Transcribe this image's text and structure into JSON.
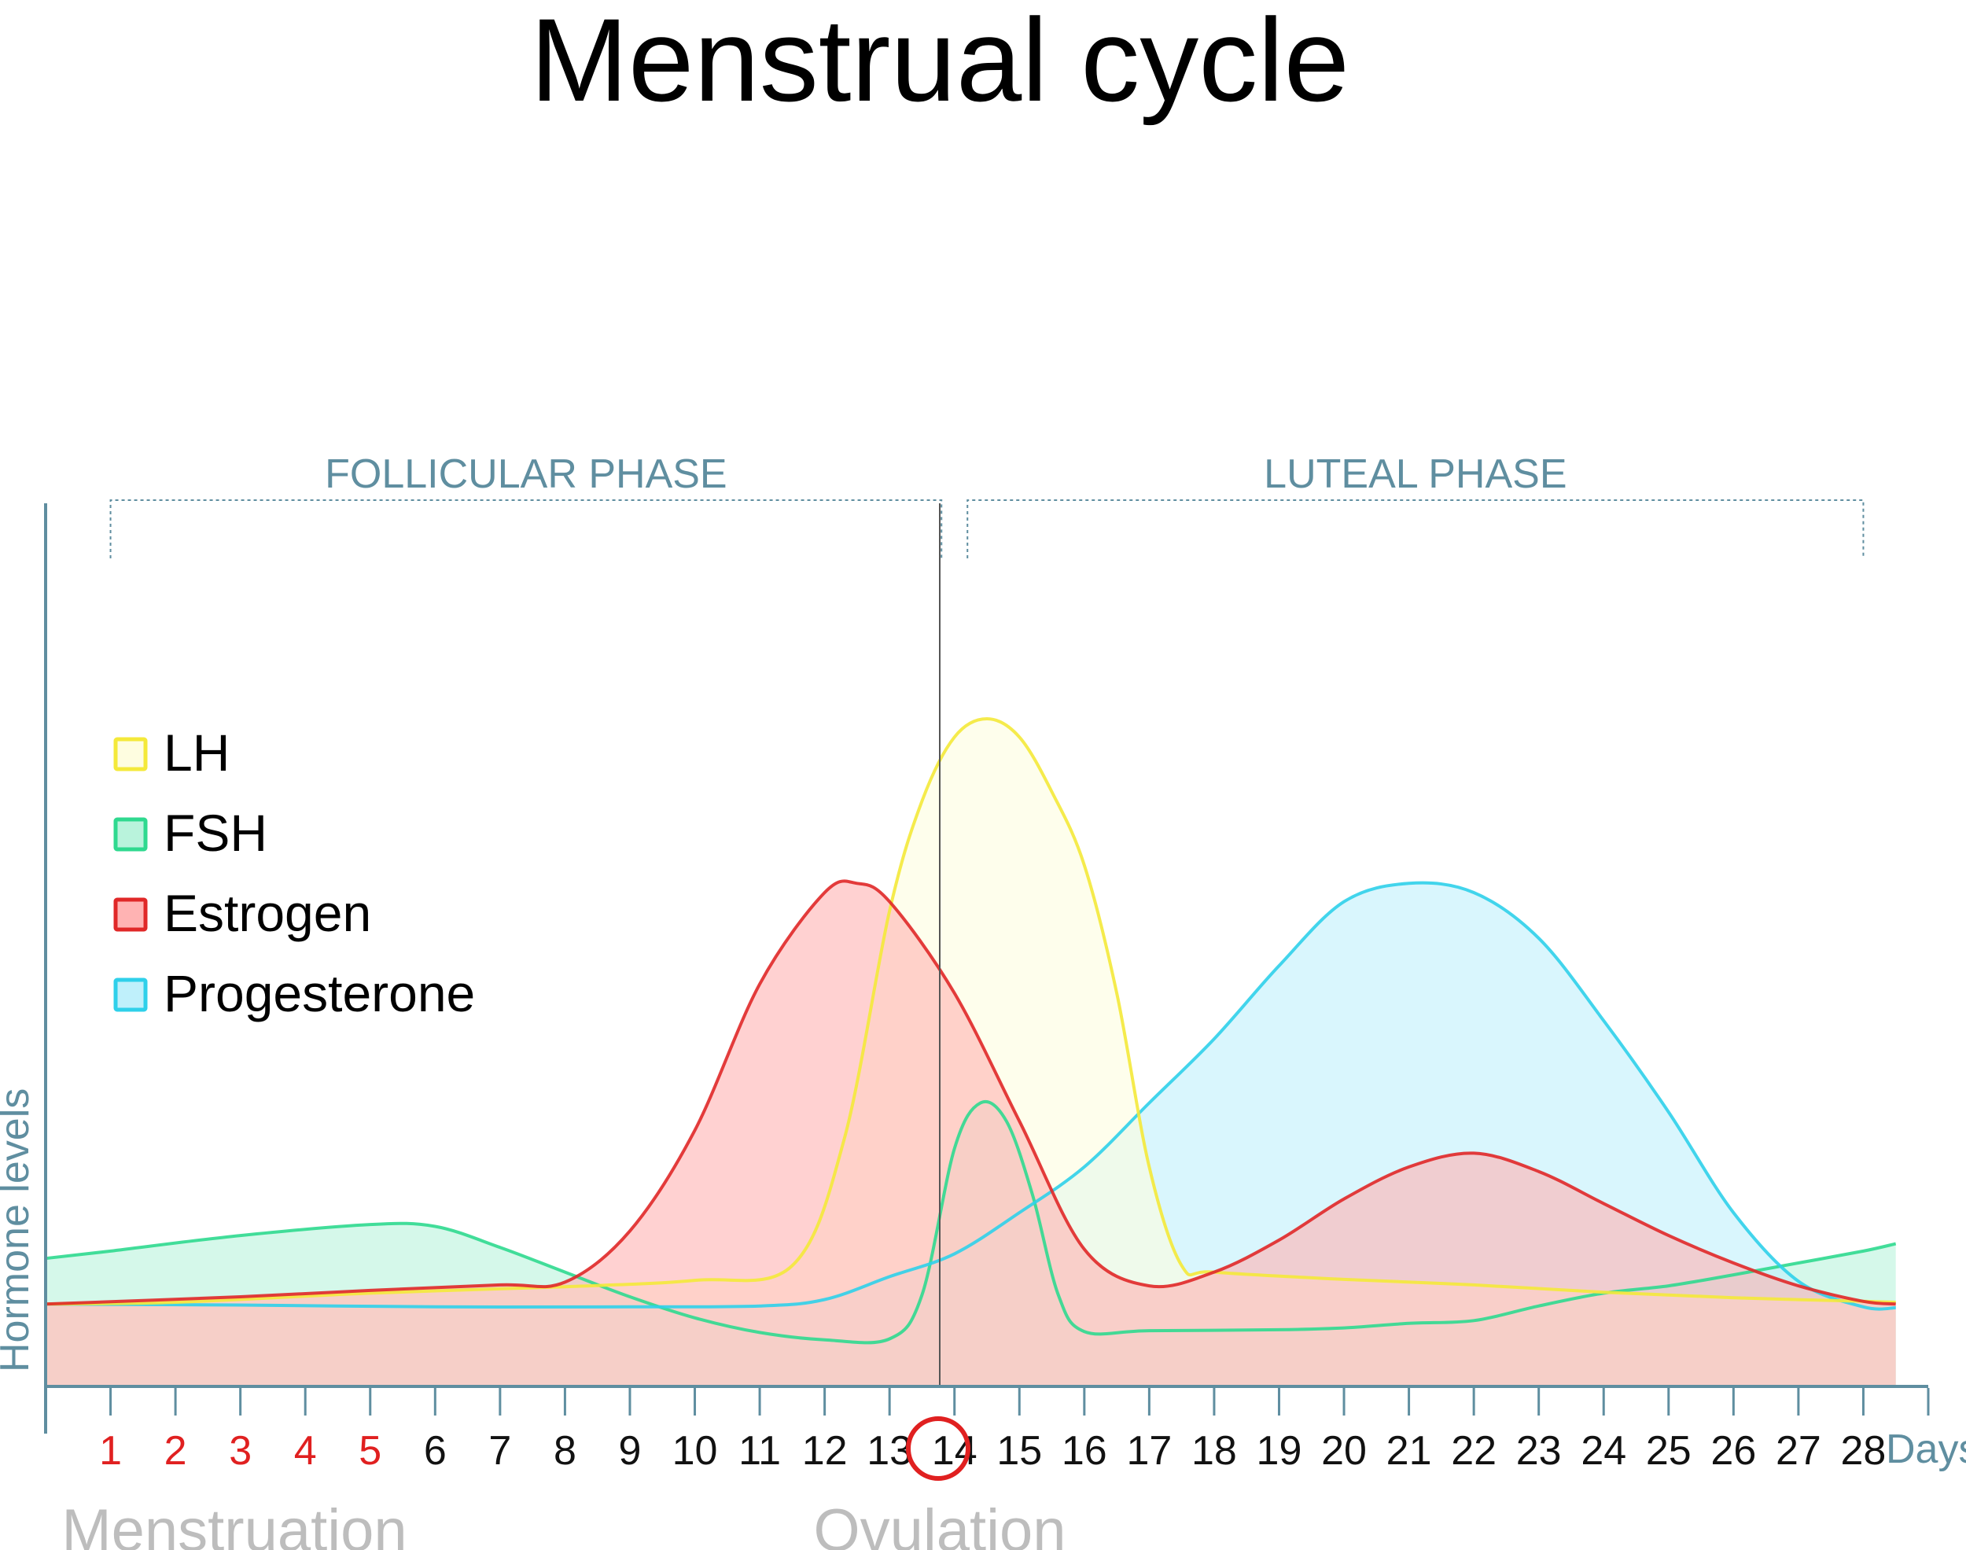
{
  "chart_data": {
    "type": "area",
    "title": "Menstrual cycle",
    "xlabel": "Days",
    "ylabel": "Hormone levels",
    "xlim": [
      0,
      29
    ],
    "ylim": [
      0,
      100
    ],
    "x_ticks": [
      1,
      2,
      3,
      4,
      5,
      6,
      7,
      8,
      9,
      10,
      11,
      12,
      13,
      14,
      15,
      16,
      17,
      18,
      19,
      20,
      21,
      22,
      23,
      24,
      25,
      26,
      27,
      28
    ],
    "menstruation_days": [
      1,
      2,
      3,
      4,
      5
    ],
    "ovulation_day": 14,
    "phases": [
      {
        "name": "FOLLICULAR PHASE",
        "start_day": 1,
        "end_day": 13.8
      },
      {
        "name": "LUTEAL PHASE",
        "start_day": 14.2,
        "end_day": 28
      }
    ],
    "annotations": [
      {
        "text": "Menstruation",
        "day": 3
      },
      {
        "text": "Ovulation",
        "day": 14
      }
    ],
    "legend": {
      "position": "left"
    },
    "series": [
      {
        "name": "FSH",
        "color": "#2fd98f",
        "fill": "#b9f3dc",
        "points": [
          [
            0,
            14
          ],
          [
            1,
            14.8
          ],
          [
            3,
            16.5
          ],
          [
            5,
            17.7
          ],
          [
            6,
            17.5
          ],
          [
            7,
            15.2
          ],
          [
            8,
            12.5
          ],
          [
            9,
            9.8
          ],
          [
            10,
            7.5
          ],
          [
            11,
            5.9
          ],
          [
            12,
            5.1
          ],
          [
            13,
            5.2
          ],
          [
            13.5,
            10
          ],
          [
            14,
            26
          ],
          [
            14.4,
            31
          ],
          [
            14.8,
            29
          ],
          [
            15.2,
            21
          ],
          [
            15.6,
            10
          ],
          [
            16,
            6
          ],
          [
            17,
            6.1
          ],
          [
            19,
            6.2
          ],
          [
            20,
            6.4
          ],
          [
            21,
            6.9
          ],
          [
            22,
            7.2
          ],
          [
            23,
            8.8
          ],
          [
            24,
            10.2
          ],
          [
            25,
            11
          ],
          [
            26,
            12.2
          ],
          [
            27,
            13.5
          ],
          [
            28,
            14.8
          ],
          [
            28.5,
            15.6
          ]
        ]
      },
      {
        "name": "Progesterone",
        "color": "#2fd0ea",
        "fill": "#bff0fb",
        "points": [
          [
            0,
            9
          ],
          [
            3,
            8.9
          ],
          [
            6,
            8.7
          ],
          [
            9,
            8.7
          ],
          [
            11,
            8.8
          ],
          [
            12,
            9.5
          ],
          [
            13,
            12
          ],
          [
            14,
            14.5
          ],
          [
            15,
            19
          ],
          [
            16,
            24
          ],
          [
            17,
            31
          ],
          [
            18,
            38
          ],
          [
            19,
            46
          ],
          [
            20,
            53
          ],
          [
            21,
            55
          ],
          [
            22,
            54
          ],
          [
            23,
            49
          ],
          [
            24,
            40
          ],
          [
            25,
            30
          ],
          [
            26,
            19
          ],
          [
            27,
            11.5
          ],
          [
            28,
            8.7
          ],
          [
            28.5,
            8.6
          ]
        ]
      },
      {
        "name": "LH",
        "color": "#f4e93a",
        "fill": "#fefde0",
        "points": [
          [
            0,
            9
          ],
          [
            2,
            9.2
          ],
          [
            5,
            10.2
          ],
          [
            8,
            10.9
          ],
          [
            10,
            11.6
          ],
          [
            11.5,
            13.2
          ],
          [
            12.3,
            27
          ],
          [
            13,
            52
          ],
          [
            13.5,
            64
          ],
          [
            14,
            71
          ],
          [
            14.5,
            73
          ],
          [
            15,
            71
          ],
          [
            15.5,
            65
          ],
          [
            16,
            57
          ],
          [
            16.5,
            43
          ],
          [
            17,
            24
          ],
          [
            17.5,
            13.2
          ],
          [
            18,
            12.5
          ],
          [
            20,
            11.7
          ],
          [
            22,
            11.1
          ],
          [
            24,
            10.3
          ],
          [
            26,
            9.7
          ],
          [
            28,
            9.3
          ],
          [
            28.5,
            9.2
          ]
        ]
      },
      {
        "name": "Estrogen",
        "color": "#e02828",
        "fill": "#ffb3b3",
        "points": [
          [
            0,
            9
          ],
          [
            3,
            9.8
          ],
          [
            5,
            10.5
          ],
          [
            7,
            11.1
          ],
          [
            8,
            11.4
          ],
          [
            9,
            17
          ],
          [
            10,
            28
          ],
          [
            11,
            44
          ],
          [
            12,
            54
          ],
          [
            12.5,
            55
          ],
          [
            13,
            53
          ],
          [
            14,
            43
          ],
          [
            15,
            29
          ],
          [
            16,
            15
          ],
          [
            17,
            11
          ],
          [
            18,
            12.5
          ],
          [
            19,
            16
          ],
          [
            20,
            20.5
          ],
          [
            21,
            24
          ],
          [
            22,
            25.5
          ],
          [
            23,
            23.5
          ],
          [
            24,
            20
          ],
          [
            25,
            16.5
          ],
          [
            26,
            13.5
          ],
          [
            27,
            11
          ],
          [
            28,
            9.3
          ],
          [
            28.5,
            9
          ]
        ]
      }
    ]
  }
}
